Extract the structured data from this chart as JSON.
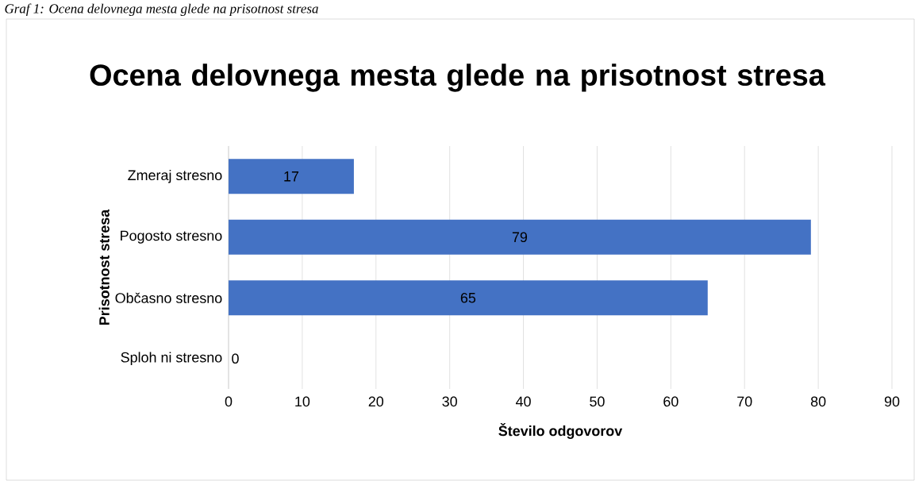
{
  "chart_data": {
    "type": "bar",
    "orientation": "horizontal",
    "title": "Ocena delovnega mesta glede na prisotnost stresa",
    "categories": [
      "Zmeraj stresno",
      "Pogosto stresno",
      "Občasno stresno",
      "Sploh ni stresno"
    ],
    "values": [
      17,
      79,
      65,
      0
    ],
    "color": "#4472c4",
    "data_labels": true,
    "xlim": [
      0,
      90
    ],
    "xticks": [
      0,
      10,
      20,
      30,
      40,
      50,
      60,
      70,
      80,
      90
    ],
    "grid": "x",
    "xlabel": "Število odgovorov",
    "ylabel": "Prisotnost stresa",
    "annotations": [
      "Graf 1: Ocena delovnega mesta glede na prisotnost stresa"
    ]
  }
}
